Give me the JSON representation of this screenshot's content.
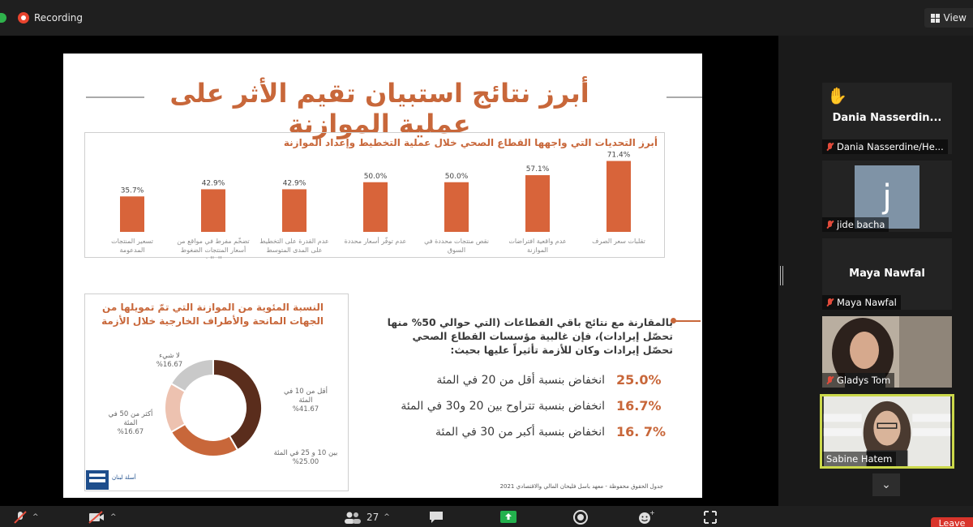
{
  "topbar": {
    "recording_label": "Recording",
    "view_label": "View",
    "recording_color": "#e8442e"
  },
  "slide": {
    "title": "أبرز نتائج استبيان تقيم الأثر على عملية الموازنة",
    "accent_color": "#c8673a",
    "bar_chart_title": "أبرز التحديات التي واجهها القطاع الصحي خلال عملية التخطيط وإعداد الموازنة",
    "donut_title_line1": "النسبة المئوية من الموازنة التي تمّ تمويلها من",
    "donut_title_line2": "الجهات المانحة والأطراف الخارجية خلال الأزمة",
    "compare_text": "بالمقارنة مع نتائج باقي القطاعات (التي حوالي 50% منها تحصّل إيرادات)، فإن غالبية مؤسسات القطاع الصحي تحصّل إيرادات وكان للأزمة تأثيراً عليها بحيث:",
    "stats": [
      {
        "pct": "25.0%",
        "text": "انخفاض بنسبة أقل من 20 في المئة"
      },
      {
        "pct": "16.7%",
        "text": "انخفاض بنسبة تتراوح بين 20 و30 في المئة"
      },
      {
        "pct": "16. 7%",
        "text": "انخفاض بنسبة أكبر من 30 في المئة"
      }
    ],
    "logo_text": "أسلة لبنان",
    "footer_source": "جدول الحقوق محفوظة - معهد باسل فليحان المالي والاقتصادي 2021"
  },
  "chart_data": [
    {
      "type": "bar",
      "title": "أبرز التحديات التي واجهها القطاع الصحي خلال عملية التخطيط وإعداد الموازنة",
      "categories": [
        "تقلبات سعر الصرف",
        "عدم واقعية افتراضات الموازنة",
        "نقص منتجات محددة في السوق",
        "عدم توفّر أسعار محددة",
        "عدم القدرة على التخطيط على المدى المتوسط",
        "تضخّم مفرط في مواقع من أسعار المنتجات الضغوط المالية",
        "تسعير المنتجات المدعومة"
      ],
      "values": [
        71.4,
        57.1,
        50.0,
        50.0,
        42.9,
        42.9,
        35.7
      ],
      "value_labels": [
        "71.4%",
        "57.1%",
        "50.0%",
        "50.0%",
        "42.9%",
        "42.9%",
        "35.7%"
      ],
      "ylim": [
        0,
        80
      ],
      "color": "#d8643a",
      "grid": false
    },
    {
      "type": "pie",
      "title": "النسبة المئوية من الموازنة التي تمّ تمويلها من الجهات المانحة والأطراف الخارجية خلال الأزمة",
      "slices": [
        {
          "label_line1": "أقل من 10 في",
          "label_line2": "المئة",
          "label_line3": "%41.67",
          "value": 41.67,
          "color": "#5a2d1c"
        },
        {
          "label_line1": "بين 10 و 25 في المئة",
          "label_line2": "%25.00",
          "label_line3": "",
          "value": 25.0,
          "color": "#c8673a"
        },
        {
          "label_line1": "أكثر من 50 في",
          "label_line2": "المئة",
          "label_line3": "%16.67",
          "value": 16.67,
          "color": "#edc2b0"
        },
        {
          "label_line1": "لا شيء",
          "label_line2": "%16.67",
          "label_line3": "",
          "value": 16.67,
          "color": "#c9c9c9"
        }
      ]
    }
  ],
  "participants": [
    {
      "display": "Dania  Nasserdin...",
      "label": "Dania Nasserdine/He...",
      "raised_hand": true
    },
    {
      "display": "j",
      "label": "jide bacha",
      "avatar_color": "#7f93a6"
    },
    {
      "display": "Maya Nawfal",
      "label": "Maya Nawfal"
    },
    {
      "display": "",
      "label": "Gladys Tom"
    },
    {
      "display": "",
      "label": "Sabine Hatem",
      "active_speaker_color": "#cbd84a"
    }
  ],
  "toolbar": {
    "participants_count": "27",
    "leave_label": "Leave"
  }
}
